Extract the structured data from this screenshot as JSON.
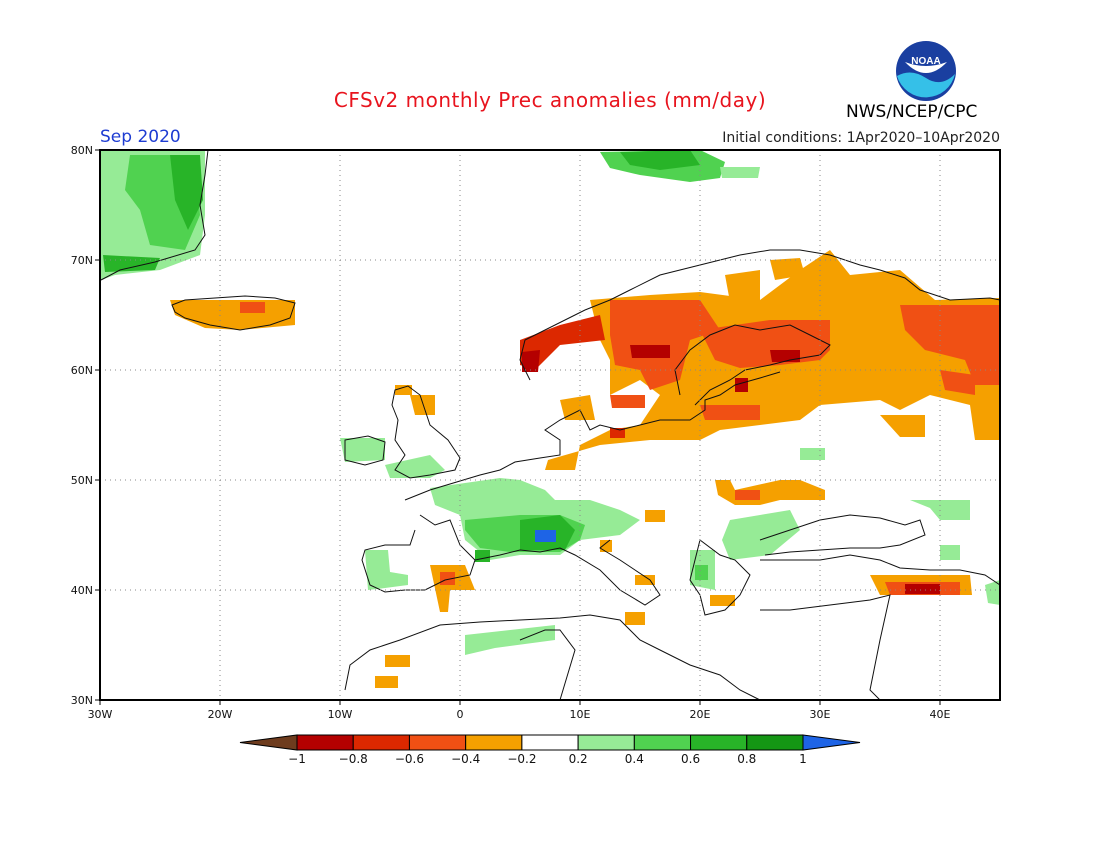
{
  "header": {
    "title": "CFSv2 monthly Prec anomalies (mm/day)",
    "month": "Sep 2020",
    "initial_conditions": "Initial conditions: 1Apr2020–10Apr2020",
    "org": "NWS/NCEP/CPC",
    "logo_icon": "noaa-logo-icon",
    "logo_text": "NOAA"
  },
  "map": {
    "lon_labels": [
      "30W",
      "20W",
      "10W",
      "0",
      "10E",
      "20E",
      "30E",
      "40E"
    ],
    "lat_labels": [
      "80N",
      "70N",
      "60N",
      "50N",
      "40N",
      "30N"
    ],
    "lon_range": [
      -30,
      45
    ],
    "lat_range": [
      30,
      80
    ]
  },
  "colorbar": {
    "labels": [
      "−1",
      "−0.8",
      "−0.6",
      "−0.4",
      "−0.2",
      "0.2",
      "0.4",
      "0.6",
      "0.8",
      "1"
    ],
    "colors": [
      "#6e3c1e",
      "#b40000",
      "#dc2800",
      "#f05014",
      "#f5a000",
      "#ffffff",
      "#96eb96",
      "#50d250",
      "#28b428",
      "#149614",
      "#1e64e6"
    ]
  },
  "colors": {
    "strong_dry": "#b40000",
    "dry": "#f05014",
    "mild_dry": "#f5a000",
    "mild_wet": "#96eb96",
    "wet": "#50d250",
    "very_wet": "#28b428",
    "extreme_wet": "#1e64e6"
  }
}
